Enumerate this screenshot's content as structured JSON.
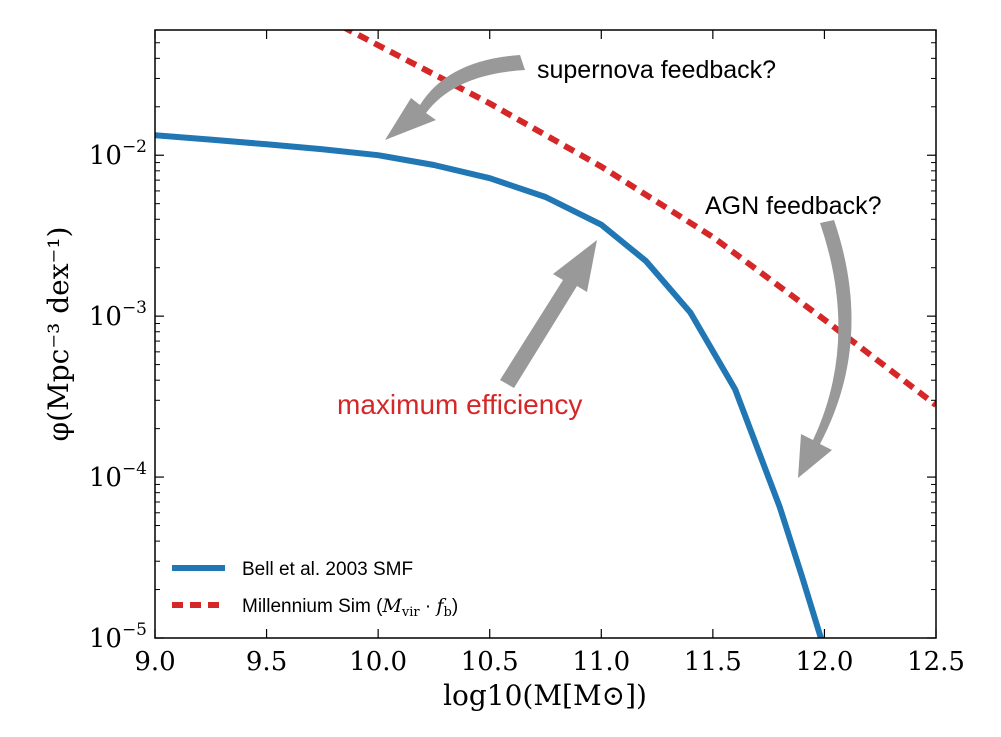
{
  "chart_data": {
    "type": "line",
    "xlabel": "log10(M[M⊙])",
    "ylabel": "φ(Mpc⁻³ dex⁻¹)",
    "xlim": [
      9.0,
      12.5
    ],
    "ylim": [
      1e-05,
      0.06
    ],
    "yscale": "log",
    "grid": false,
    "legend_position": "lower-left",
    "x_ticks": [
      "9.0",
      "9.5",
      "10.0",
      "10.5",
      "11.0",
      "11.5",
      "12.0",
      "12.5"
    ],
    "y_ticks": [
      {
        "value": 1e-05,
        "base": "10",
        "exp": "−5"
      },
      {
        "value": 0.0001,
        "base": "10",
        "exp": "−4"
      },
      {
        "value": 0.001,
        "base": "10",
        "exp": "−3"
      },
      {
        "value": 0.01,
        "base": "10",
        "exp": "−2"
      }
    ],
    "series": [
      {
        "name": "Bell et al. 2003 SMF",
        "color": "#2077b4",
        "style": "solid",
        "x": [
          9.0,
          9.25,
          9.5,
          9.75,
          10.0,
          10.25,
          10.5,
          10.75,
          11.0,
          11.2,
          11.4,
          11.6,
          11.8,
          11.9,
          12.0
        ],
        "y": [
          0.0133,
          0.0125,
          0.0117,
          0.0109,
          0.01,
          0.0087,
          0.0072,
          0.0055,
          0.0037,
          0.0022,
          0.00105,
          0.00035,
          6.5e-05,
          2.4e-05,
          8.5e-06
        ]
      },
      {
        "name": "Millennium Sim (M_vir · f_b)",
        "legend_prefix": "Millennium Sim (",
        "legend_math_base": "M",
        "legend_math_sub": "vir",
        "legend_math_mid": " · ",
        "legend_math_f": "f",
        "legend_math_fsub": "b",
        "legend_suffix": ")",
        "color": "#d62728",
        "style": "dashed",
        "x": [
          9.84,
          10.5,
          11.0,
          11.5,
          12.0,
          12.5
        ],
        "y": [
          0.063,
          0.021,
          0.0085,
          0.0031,
          0.00095,
          0.00028
        ]
      }
    ],
    "annotations": [
      {
        "text": "supernova feedback?",
        "color": "#000000"
      },
      {
        "text": "AGN feedback?",
        "color": "#000000"
      },
      {
        "text": "maximum efficiency",
        "color": "#d62728"
      }
    ]
  }
}
